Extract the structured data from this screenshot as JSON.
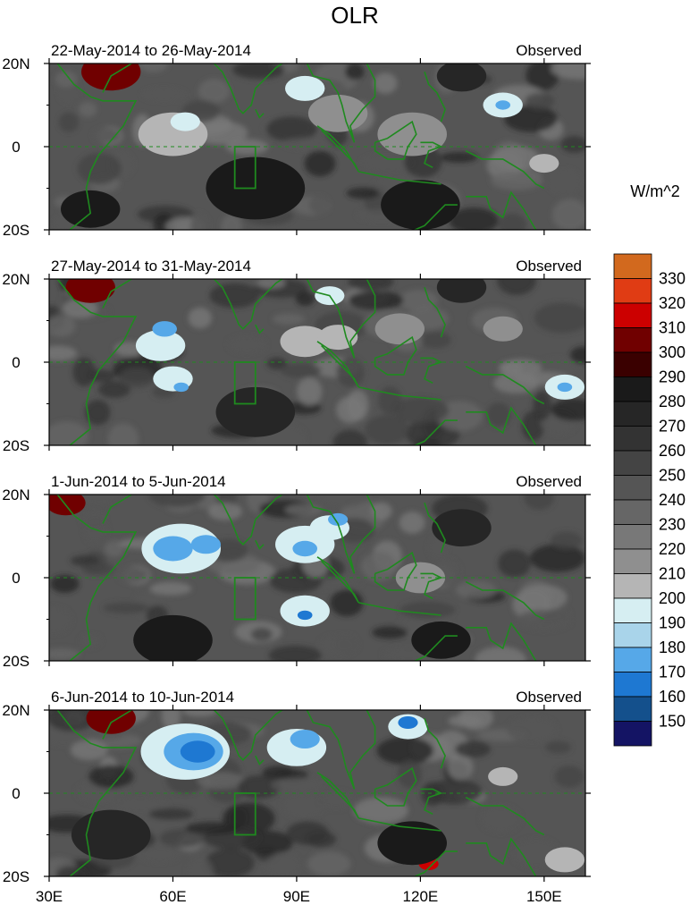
{
  "chart_data": {
    "type": "heatmap",
    "title": "OLR",
    "units": "W/m^2",
    "y_ticks": [
      "20N",
      "0",
      "20S"
    ],
    "x_ticks": [
      "30E",
      "60E",
      "90E",
      "120E",
      "150E"
    ],
    "x_tick_values": [
      30,
      60,
      90,
      120,
      150
    ],
    "xlim": [
      30,
      160
    ],
    "ylim": [
      -20,
      20
    ],
    "colorbar": {
      "levels": [
        330,
        320,
        310,
        300,
        290,
        280,
        270,
        260,
        250,
        240,
        230,
        220,
        210,
        200,
        190,
        180,
        170,
        160,
        150
      ],
      "colors": [
        "#d2691e",
        "#e03c14",
        "#cc0000",
        "#700000",
        "#3a0000",
        "#1a1a1a",
        "#262626",
        "#333333",
        "#444444",
        "#555555",
        "#666666",
        "#787878",
        "#8f8f8f",
        "#b5b5b5",
        "#d6eef2",
        "#a9d4ea",
        "#56a8e8",
        "#1e78d2",
        "#14508c",
        "#141464"
      ]
    },
    "panels": [
      {
        "left_label": "22-May-2014 to 26-May-2014",
        "right_label": "Observed",
        "blobs": [
          {
            "lon": 60,
            "lat": 3,
            "r": 7,
            "v": 200
          },
          {
            "lon": 63,
            "lat": 6,
            "r": 3,
            "v": 190
          },
          {
            "lon": 92,
            "lat": 14,
            "r": 4,
            "v": 190
          },
          {
            "lon": 100,
            "lat": 8,
            "r": 6,
            "v": 210
          },
          {
            "lon": 118,
            "lat": 3,
            "r": 7,
            "v": 210
          },
          {
            "lon": 140,
            "lat": 10,
            "r": 4,
            "v": 190
          },
          {
            "lon": 140,
            "lat": 10,
            "r": 1.5,
            "v": 170
          },
          {
            "lon": 150,
            "lat": -4,
            "r": 3,
            "v": 200
          },
          {
            "lon": 45,
            "lat": 18,
            "r": 6,
            "v": 300
          },
          {
            "lon": 130,
            "lat": 17,
            "r": 5,
            "v": 270
          },
          {
            "lon": 80,
            "lat": -10,
            "r": 10,
            "v": 280
          },
          {
            "lon": 40,
            "lat": -15,
            "r": 6,
            "v": 280
          },
          {
            "lon": 120,
            "lat": -14,
            "r": 8,
            "v": 280
          }
        ]
      },
      {
        "left_label": "27-May-2014 to 31-May-2014",
        "right_label": "Observed",
        "blobs": [
          {
            "lon": 57,
            "lat": 4,
            "r": 5,
            "v": 190
          },
          {
            "lon": 58,
            "lat": 8,
            "r": 2.5,
            "v": 170
          },
          {
            "lon": 60,
            "lat": -4,
            "r": 4,
            "v": 190
          },
          {
            "lon": 62,
            "lat": -6,
            "r": 1.5,
            "v": 170
          },
          {
            "lon": 92,
            "lat": 5,
            "r": 5,
            "v": 200
          },
          {
            "lon": 98,
            "lat": 16,
            "r": 3,
            "v": 190
          },
          {
            "lon": 100,
            "lat": 6,
            "r": 4,
            "v": 200
          },
          {
            "lon": 115,
            "lat": 8,
            "r": 5,
            "v": 210
          },
          {
            "lon": 140,
            "lat": 8,
            "r": 4,
            "v": 210
          },
          {
            "lon": 155,
            "lat": -6,
            "r": 4,
            "v": 190
          },
          {
            "lon": 155,
            "lat": -6,
            "r": 1.5,
            "v": 170
          },
          {
            "lon": 40,
            "lat": 18,
            "r": 5,
            "v": 300
          },
          {
            "lon": 80,
            "lat": -12,
            "r": 8,
            "v": 270
          },
          {
            "lon": 130,
            "lat": 18,
            "r": 5,
            "v": 270
          }
        ]
      },
      {
        "left_label": "1-Jun-2014 to 5-Jun-2014",
        "right_label": "Observed",
        "blobs": [
          {
            "lon": 62,
            "lat": 7,
            "r": 8,
            "v": 190
          },
          {
            "lon": 60,
            "lat": 7,
            "r": 4,
            "v": 170
          },
          {
            "lon": 68,
            "lat": 8,
            "r": 3,
            "v": 170
          },
          {
            "lon": 92,
            "lat": 8,
            "r": 6,
            "v": 190
          },
          {
            "lon": 92,
            "lat": 7,
            "r": 2.5,
            "v": 170
          },
          {
            "lon": 98,
            "lat": 12,
            "r": 4,
            "v": 190
          },
          {
            "lon": 100,
            "lat": 14,
            "r": 2,
            "v": 170
          },
          {
            "lon": 92,
            "lat": -8,
            "r": 5,
            "v": 190
          },
          {
            "lon": 92,
            "lat": -9,
            "r": 1.5,
            "v": 160
          },
          {
            "lon": 120,
            "lat": 0,
            "r": 5,
            "v": 210
          },
          {
            "lon": 34,
            "lat": 18,
            "r": 4,
            "v": 300
          },
          {
            "lon": 130,
            "lat": 12,
            "r": 6,
            "v": 270
          },
          {
            "lon": 60,
            "lat": -15,
            "r": 8,
            "v": 280
          },
          {
            "lon": 125,
            "lat": -15,
            "r": 6,
            "v": 280
          }
        ]
      },
      {
        "left_label": "6-Jun-2014 to 10-Jun-2014",
        "right_label": "Observed",
        "blobs": [
          {
            "lon": 63,
            "lat": 10,
            "r": 9,
            "v": 190
          },
          {
            "lon": 65,
            "lat": 10,
            "r": 6,
            "v": 170
          },
          {
            "lon": 66,
            "lat": 10,
            "r": 3.5,
            "v": 160
          },
          {
            "lon": 90,
            "lat": 11,
            "r": 6,
            "v": 190
          },
          {
            "lon": 92,
            "lat": 13,
            "r": 3,
            "v": 170
          },
          {
            "lon": 117,
            "lat": 16,
            "r": 4,
            "v": 190
          },
          {
            "lon": 117,
            "lat": 17,
            "r": 2,
            "v": 160
          },
          {
            "lon": 140,
            "lat": 4,
            "r": 3,
            "v": 200
          },
          {
            "lon": 155,
            "lat": -16,
            "r": 4,
            "v": 200
          },
          {
            "lon": 45,
            "lat": 18,
            "r": 5,
            "v": 300
          },
          {
            "lon": 122,
            "lat": -17,
            "r": 2,
            "v": 310
          },
          {
            "lon": 118,
            "lat": -12,
            "r": 7,
            "v": 280
          },
          {
            "lon": 45,
            "lat": -10,
            "r": 8,
            "v": 270
          }
        ]
      }
    ]
  }
}
